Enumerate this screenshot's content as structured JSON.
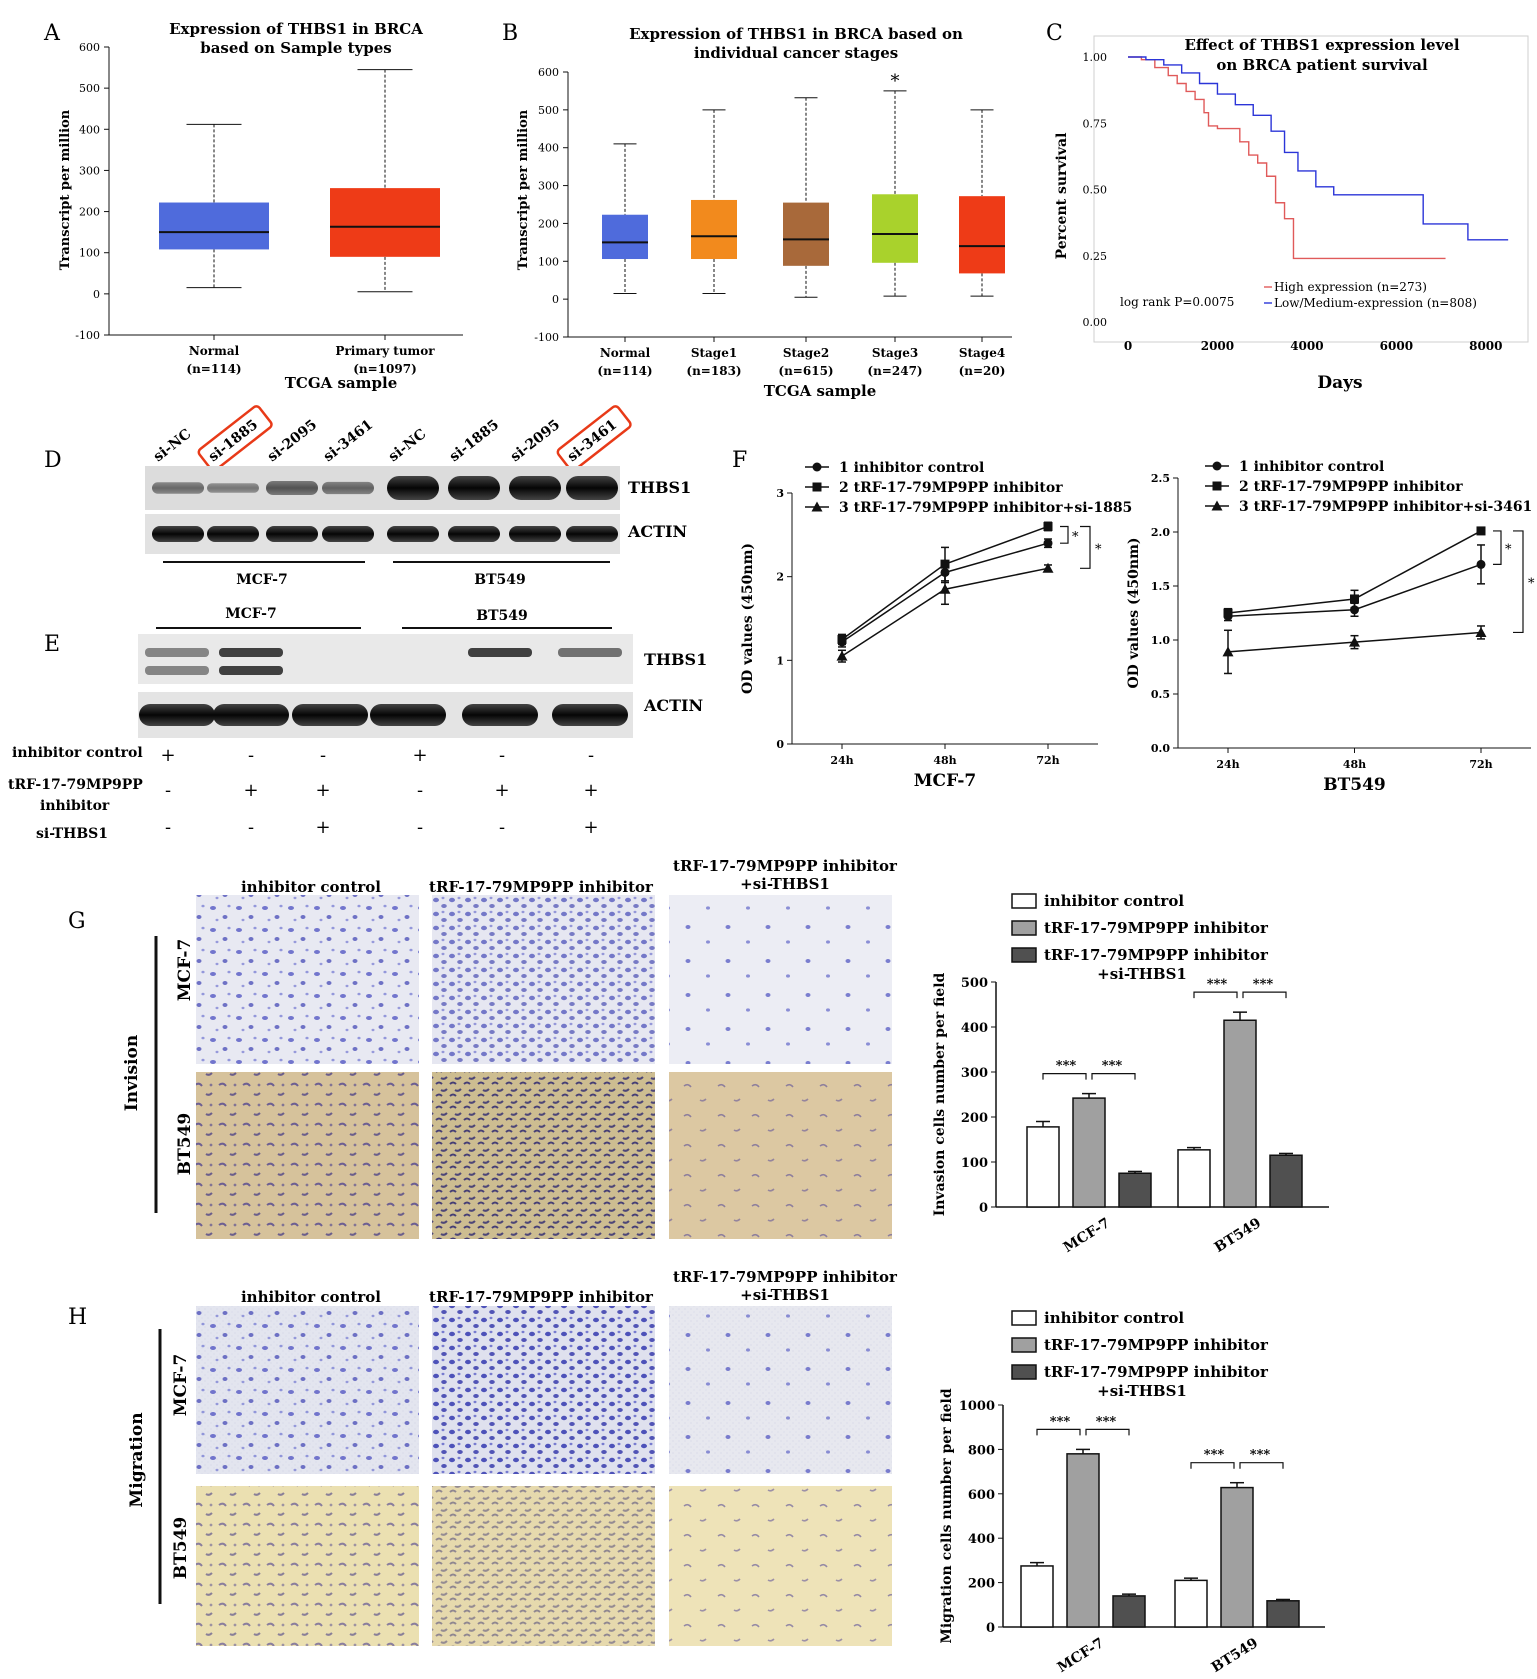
{
  "panels": {
    "A": {
      "letter": "A",
      "title_line1": "Expression of THBS1 in BRCA",
      "title_line2": "based on Sample types",
      "ylabel": "Transcript per million",
      "xlabel": "TCGA sample",
      "yticks": [
        "600",
        "500",
        "400",
        "300",
        "200",
        "100",
        "0",
        "-100"
      ],
      "groups": [
        {
          "label": "Normal",
          "n": "(n=114)",
          "color": "#4f6bdc",
          "min": 15,
          "q1": 108,
          "median": 150,
          "q3": 222,
          "max": 412
        },
        {
          "label": "Primary tumor",
          "n": "(n=1097)",
          "color": "#ee3b17",
          "min": 5,
          "q1": 90,
          "median": 163,
          "q3": 257,
          "max": 545
        }
      ]
    },
    "B": {
      "letter": "B",
      "title_line1": "Expression of THBS1 in BRCA based on",
      "title_line2": "individual cancer stages",
      "ylabel": "Transcript per million",
      "xlabel": "TCGA sample",
      "yticks": [
        "600",
        "500",
        "400",
        "300",
        "200",
        "100",
        "0",
        "-100"
      ],
      "star": "*",
      "groups": [
        {
          "label": "Normal",
          "n": "(n=114)",
          "color": "#4f6bdc",
          "min": 15,
          "q1": 106,
          "median": 150,
          "q3": 223,
          "max": 410
        },
        {
          "label": "Stage1",
          "n": "(n=183)",
          "color": "#f28a1d",
          "min": 15,
          "q1": 106,
          "median": 166,
          "q3": 262,
          "max": 500
        },
        {
          "label": "Stage2",
          "n": "(n=615)",
          "color": "#a8693a",
          "min": 5,
          "q1": 88,
          "median": 158,
          "q3": 255,
          "max": 532
        },
        {
          "label": "Stage3",
          "n": "(n=247)",
          "color": "#a9d22c",
          "min": 8,
          "q1": 96,
          "median": 172,
          "q3": 277,
          "max": 550
        },
        {
          "label": "Stage4",
          "n": "(n=20)",
          "color": "#ee3b17",
          "min": 8,
          "q1": 68,
          "median": 140,
          "q3": 272,
          "max": 500
        }
      ]
    },
    "C": {
      "letter": "C",
      "title_line1": "Effect of THBS1 expression level",
      "title_line2": "on BRCA patient survival",
      "ylabel": "Percent survival",
      "xlabel": "Days",
      "yticks": [
        "1.00",
        "0.75",
        "0.50",
        "0.25",
        "0.00"
      ],
      "xticks": [
        "0",
        "2000",
        "4000",
        "6000",
        "8000"
      ],
      "logrank": "log rank P=0.0075",
      "legend_high": "High expression (n=273)",
      "legend_low": "Low/Medium-expression (n=808)",
      "color_high": "#e05a5a",
      "color_low": "#2b35d8",
      "high_curve": [
        [
          0,
          1.0
        ],
        [
          300,
          0.99
        ],
        [
          600,
          0.96
        ],
        [
          900,
          0.93
        ],
        [
          1100,
          0.9
        ],
        [
          1300,
          0.87
        ],
        [
          1500,
          0.84
        ],
        [
          1700,
          0.79
        ],
        [
          1800,
          0.74
        ],
        [
          2000,
          0.73
        ],
        [
          2300,
          0.73
        ],
        [
          2500,
          0.68
        ],
        [
          2700,
          0.63
        ],
        [
          2900,
          0.6
        ],
        [
          3100,
          0.55
        ],
        [
          3300,
          0.45
        ],
        [
          3500,
          0.39
        ],
        [
          3700,
          0.24
        ],
        [
          4200,
          0.24
        ],
        [
          5000,
          0.24
        ],
        [
          7100,
          0.24
        ]
      ],
      "low_curve": [
        [
          0,
          1.0
        ],
        [
          400,
          0.99
        ],
        [
          800,
          0.97
        ],
        [
          1200,
          0.94
        ],
        [
          1600,
          0.9
        ],
        [
          2000,
          0.86
        ],
        [
          2400,
          0.82
        ],
        [
          2800,
          0.78
        ],
        [
          3200,
          0.72
        ],
        [
          3500,
          0.64
        ],
        [
          3800,
          0.57
        ],
        [
          4200,
          0.51
        ],
        [
          4600,
          0.48
        ],
        [
          5500,
          0.48
        ],
        [
          6500,
          0.48
        ],
        [
          6600,
          0.37
        ],
        [
          7500,
          0.37
        ],
        [
          7600,
          0.31
        ],
        [
          8500,
          0.31
        ]
      ]
    },
    "D": {
      "letter": "D",
      "lanes": [
        "si-NC",
        "si-1885",
        "si-2095",
        "si-3461",
        "si-NC",
        "si-1885",
        "si-2095",
        "si-3461"
      ],
      "highlighted": [
        1,
        7
      ],
      "band_labels": [
        "THBS1",
        "ACTIN"
      ],
      "cell_lines": [
        "MCF-7",
        "BT549"
      ]
    },
    "E": {
      "letter": "E",
      "cell_lines": [
        "MCF-7",
        "BT549"
      ],
      "band_labels": [
        "THBS1",
        "ACTIN"
      ],
      "rows": [
        {
          "label": "inhibitor control",
          "values": [
            "+",
            "-",
            "-",
            "+",
            "-",
            "-"
          ]
        },
        {
          "label": "tRF-17-79MP9PP inhibitor",
          "values": [
            "-",
            "+",
            "+",
            "-",
            "+",
            "+"
          ]
        },
        {
          "label": "si-THBS1",
          "values": [
            "-",
            "-",
            "+",
            "-",
            "-",
            "+"
          ]
        }
      ]
    },
    "F": {
      "letter": "F",
      "ylabel": "OD values (450nm)",
      "legend_mcf7": [
        "1 inhibitor control",
        "2 tRF-17-79MP9PP inhibitor",
        "3 tRF-17-79MP9PP inhibitor+si-1885"
      ],
      "legend_bt549": [
        "1 inhibitor control",
        "2 tRF-17-79MP9PP inhibitor",
        "3 tRF-17-79MP9PP inhibitor+si-3461"
      ],
      "xticks": [
        "24h",
        "48h",
        "72h"
      ],
      "mcf7": {
        "title": "MCF-7",
        "yticks": [
          "0",
          "1",
          "2",
          "3"
        ],
        "ymax": 3,
        "series": [
          [
            1.22,
            2.05,
            2.4
          ],
          [
            1.25,
            2.15,
            2.6
          ],
          [
            1.05,
            1.85,
            2.1
          ]
        ],
        "err": [
          [
            0.06,
            0.12,
            0.05
          ],
          [
            0.06,
            0.2,
            0.05
          ],
          [
            0.07,
            0.18,
            0.04
          ]
        ]
      },
      "bt549": {
        "title": "BT549",
        "yticks": [
          "0.0",
          "0.5",
          "1.0",
          "1.5",
          "2.0",
          "2.5"
        ],
        "ymax": 2.5,
        "series": [
          [
            1.22,
            1.28,
            1.7
          ],
          [
            1.25,
            1.38,
            2.01
          ],
          [
            0.89,
            0.98,
            1.07
          ]
        ],
        "err": [
          [
            0.04,
            0.06,
            0.18
          ],
          [
            0.04,
            0.08,
            0.03
          ],
          [
            0.2,
            0.06,
            0.06
          ]
        ]
      },
      "sig": "*"
    },
    "G": {
      "letter": "G",
      "row_group": "Invision",
      "rows": [
        "MCF-7",
        "BT549"
      ],
      "col_titles": [
        "inhibitor control",
        "tRF-17-79MP9PP inhibitor",
        "tRF-17-79MP9PP inhibitor",
        "+si-THBS1"
      ],
      "legend": [
        "inhibitor control",
        "tRF-17-79MP9PP inhibitor",
        "tRF-17-79MP9PP inhibitor",
        "+si-THBS1"
      ],
      "ylabel": "Invasion cells number per field",
      "yticks": [
        "0",
        "100",
        "200",
        "300",
        "400",
        "500"
      ],
      "ymax": 500,
      "categories": [
        "MCF-7",
        "BT549"
      ],
      "values": [
        [
          178,
          242,
          75
        ],
        [
          127,
          415,
          115
        ]
      ],
      "err": [
        [
          12,
          10,
          4
        ],
        [
          5,
          18,
          4
        ]
      ],
      "sig": "***"
    },
    "H": {
      "letter": "H",
      "row_group": "Migration",
      "rows": [
        "MCF-7",
        "BT549"
      ],
      "col_titles": [
        "inhibitor control",
        "tRF-17-79MP9PP inhibitor",
        "tRF-17-79MP9PP inhibitor",
        "+si-THBS1"
      ],
      "legend": [
        "inhibitor control",
        "tRF-17-79MP9PP inhibitor",
        "tRF-17-79MP9PP inhibitor",
        "+si-THBS1"
      ],
      "ylabel": "Migration cells number per field",
      "yticks": [
        "0",
        "200",
        "400",
        "600",
        "800",
        "1000"
      ],
      "ymax": 1000,
      "categories": [
        "MCF-7",
        "BT549"
      ],
      "values": [
        [
          275,
          780,
          140
        ],
        [
          210,
          628,
          118
        ]
      ],
      "err": [
        [
          15,
          20,
          8
        ],
        [
          10,
          22,
          6
        ]
      ],
      "sig": "***"
    }
  },
  "chart_data": [
    {
      "type": "box",
      "title": "Expression of THBS1 in BRCA based on Sample types",
      "xlabel": "TCGA sample",
      "ylabel": "Transcript per million",
      "ylim": [
        -100,
        600
      ],
      "categories": [
        "Normal (n=114)",
        "Primary tumor (n=1097)"
      ],
      "boxes": [
        {
          "min": 15,
          "q1": 108,
          "median": 150,
          "q3": 222,
          "max": 412
        },
        {
          "min": 5,
          "q1": 90,
          "median": 163,
          "q3": 257,
          "max": 545
        }
      ]
    },
    {
      "type": "box",
      "title": "Expression of THBS1 in BRCA based on individual cancer stages",
      "xlabel": "TCGA sample",
      "ylabel": "Transcript per million",
      "ylim": [
        -100,
        600
      ],
      "categories": [
        "Normal (n=114)",
        "Stage1 (n=183)",
        "Stage2 (n=615)",
        "Stage3 (n=247)",
        "Stage4 (n=20)"
      ],
      "boxes": [
        {
          "min": 15,
          "q1": 106,
          "median": 150,
          "q3": 223,
          "max": 410
        },
        {
          "min": 15,
          "q1": 106,
          "median": 166,
          "q3": 262,
          "max": 500
        },
        {
          "min": 5,
          "q1": 88,
          "median": 158,
          "q3": 255,
          "max": 532
        },
        {
          "min": 8,
          "q1": 96,
          "median": 172,
          "q3": 277,
          "max": 550
        },
        {
          "min": 8,
          "q1": 68,
          "median": 140,
          "q3": 272,
          "max": 500
        }
      ]
    },
    {
      "type": "line",
      "title": "Effect of THBS1 expression level on BRCA patient survival",
      "xlabel": "Days",
      "ylabel": "Percent survival",
      "xlim": [
        0,
        8500
      ],
      "ylim": [
        0,
        1
      ],
      "series": [
        {
          "name": "High expression (n=273)"
        },
        {
          "name": "Low/Medium-expression (n=808)"
        }
      ]
    },
    {
      "type": "line",
      "title": "MCF-7",
      "ylabel": "OD values (450nm)",
      "categories": [
        "24h",
        "48h",
        "72h"
      ],
      "ylim": [
        0,
        3
      ],
      "series": [
        {
          "name": "1 inhibitor control",
          "values": [
            1.22,
            2.05,
            2.4
          ]
        },
        {
          "name": "2 tRF-17-79MP9PP inhibitor",
          "values": [
            1.25,
            2.15,
            2.6
          ]
        },
        {
          "name": "3 tRF-17-79MP9PP inhibitor+si-1885",
          "values": [
            1.05,
            1.85,
            2.1
          ]
        }
      ]
    },
    {
      "type": "line",
      "title": "BT549",
      "ylabel": "OD values (450nm)",
      "categories": [
        "24h",
        "48h",
        "72h"
      ],
      "ylim": [
        0,
        2.5
      ],
      "series": [
        {
          "name": "1 inhibitor control",
          "values": [
            1.22,
            1.28,
            1.7
          ]
        },
        {
          "name": "2 tRF-17-79MP9PP inhibitor",
          "values": [
            1.25,
            1.38,
            2.01
          ]
        },
        {
          "name": "3 tRF-17-79MP9PP inhibitor+si-3461",
          "values": [
            0.89,
            0.98,
            1.07
          ]
        }
      ]
    },
    {
      "type": "bar",
      "ylabel": "Invasion cells number per field",
      "categories": [
        "MCF-7",
        "BT549"
      ],
      "ylim": [
        0,
        500
      ],
      "series": [
        {
          "name": "inhibitor control",
          "values": [
            178,
            127
          ]
        },
        {
          "name": "tRF-17-79MP9PP inhibitor",
          "values": [
            242,
            415
          ]
        },
        {
          "name": "tRF-17-79MP9PP inhibitor +si-THBS1",
          "values": [
            75,
            115
          ]
        }
      ]
    },
    {
      "type": "bar",
      "ylabel": "Migration cells number per field",
      "categories": [
        "MCF-7",
        "BT549"
      ],
      "ylim": [
        0,
        1000
      ],
      "series": [
        {
          "name": "inhibitor control",
          "values": [
            275,
            210
          ]
        },
        {
          "name": "tRF-17-79MP9PP inhibitor",
          "values": [
            780,
            628
          ]
        },
        {
          "name": "tRF-17-79MP9PP inhibitor +si-THBS1",
          "values": [
            140,
            118
          ]
        }
      ]
    }
  ]
}
